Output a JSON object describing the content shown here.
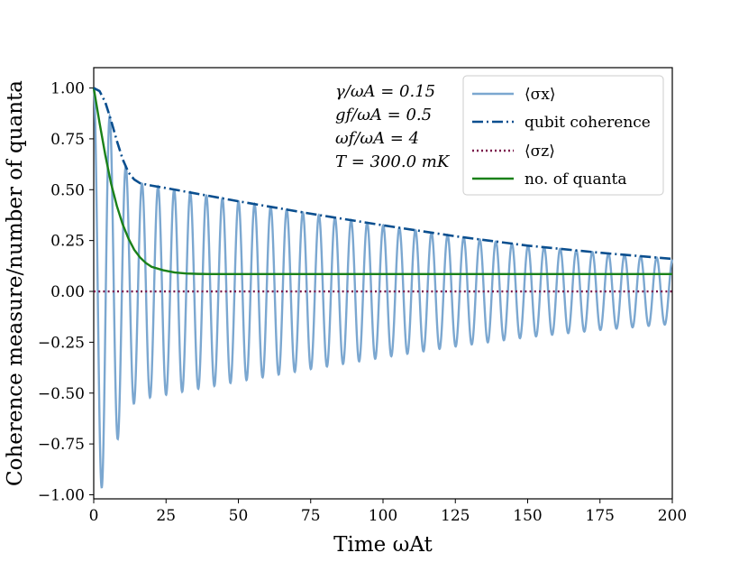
{
  "chart_data": {
    "type": "line",
    "xlabel": "Time ωAt",
    "ylabel": "Coherence measure/number of quanta",
    "xlim": [
      0,
      200
    ],
    "ylim": [
      -1.02,
      1.1
    ],
    "x_ticks": [
      0,
      25,
      50,
      75,
      100,
      125,
      150,
      175,
      200
    ],
    "y_ticks": [
      -1.0,
      -0.75,
      -0.5,
      -0.25,
      0.0,
      0.25,
      0.5,
      0.75,
      1.0
    ],
    "y_tick_labels": [
      "−1.00",
      "−0.75",
      "−0.50",
      "−0.25",
      "0.00",
      "0.25",
      "0.50",
      "0.75",
      "1.00"
    ],
    "annotations": [
      "γ/ωA = 0.15",
      "gf/ωA = 0.5",
      "ωf/ωA = 4",
      "T = 300.0 mK"
    ],
    "legend_position": "top-right",
    "series": [
      {
        "name": "⟨σx⟩",
        "style": "solid",
        "color": "#7ba7d0",
        "model": "x(t) = coherence(t) · cos(ω t)",
        "omega": 1.13,
        "t_step": 0.08
      },
      {
        "name": "qubit coherence",
        "style": "dashdot",
        "color": "#0b4f8f",
        "points": [
          [
            0,
            1.0
          ],
          [
            2,
            0.985
          ],
          [
            4,
            0.93
          ],
          [
            6,
            0.84
          ],
          [
            8,
            0.74
          ],
          [
            10,
            0.65
          ],
          [
            12,
            0.585
          ],
          [
            14,
            0.55
          ],
          [
            16,
            0.532
          ],
          [
            20,
            0.52
          ],
          [
            25,
            0.508
          ],
          [
            50,
            0.443
          ],
          [
            75,
            0.382
          ],
          [
            100,
            0.325
          ],
          [
            125,
            0.271
          ],
          [
            150,
            0.225
          ],
          [
            175,
            0.19
          ],
          [
            200,
            0.16
          ]
        ]
      },
      {
        "name": "⟨σz⟩",
        "style": "dotted",
        "color": "#7b1a4b",
        "points": [
          [
            0,
            0.0
          ],
          [
            200,
            0.0
          ]
        ]
      },
      {
        "name": "no. of quanta",
        "style": "solid",
        "color": "#1a8119",
        "points": [
          [
            0,
            1.0
          ],
          [
            2,
            0.83
          ],
          [
            4,
            0.67
          ],
          [
            6,
            0.53
          ],
          [
            8,
            0.42
          ],
          [
            10,
            0.33
          ],
          [
            12,
            0.26
          ],
          [
            14,
            0.205
          ],
          [
            16,
            0.167
          ],
          [
            18,
            0.14
          ],
          [
            20,
            0.121
          ],
          [
            24,
            0.104
          ],
          [
            28,
            0.093
          ],
          [
            32,
            0.088
          ],
          [
            36,
            0.086
          ],
          [
            40,
            0.085
          ],
          [
            60,
            0.085
          ],
          [
            100,
            0.085
          ],
          [
            150,
            0.085
          ],
          [
            200,
            0.085
          ]
        ]
      }
    ]
  }
}
